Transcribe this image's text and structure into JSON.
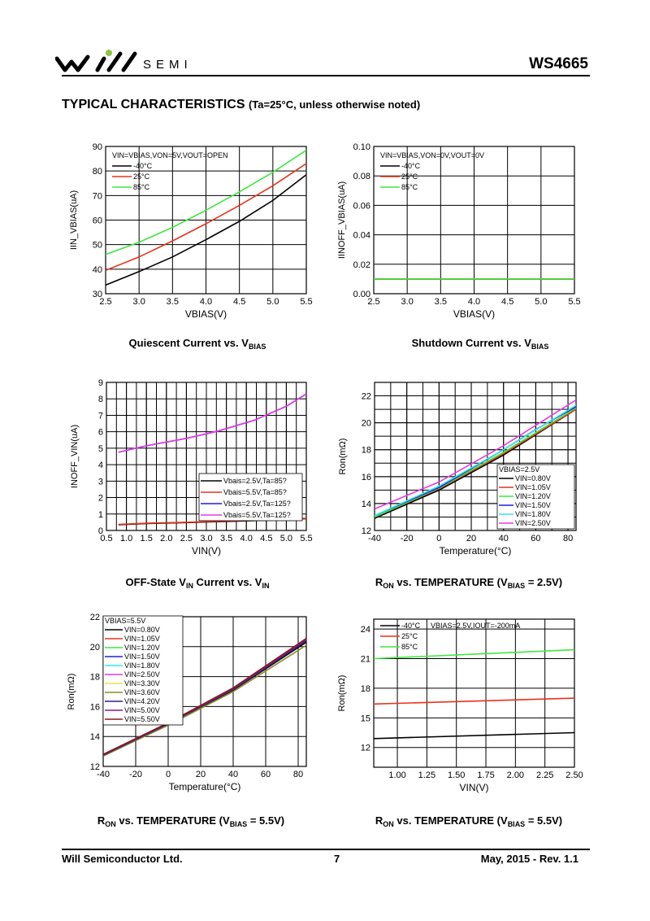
{
  "header": {
    "brand": "SEMI",
    "part_number": "WS4665",
    "section_title": "TYPICAL CHARACTERISTICS",
    "section_note": "(Ta=25°C, unless otherwise noted)"
  },
  "captions": {
    "c1_main": "Quiescent Current vs. V",
    "c1_sub": "BIAS",
    "c2_main": "Shutdown Current vs. V",
    "c2_sub": "BIAS",
    "c3_a": "OFF-State V",
    "c3_sub1": "IN",
    "c3_b": " Current vs. V",
    "c3_sub2": "IN",
    "c4_a": "R",
    "c4_sub1": "ON",
    "c4_b": " vs. TEMPERATURE (V",
    "c4_sub2": "BIAS",
    "c4_c": " = 2.5V)",
    "c5_a": "R",
    "c5_sub1": "ON",
    "c5_b": " vs. TEMPERATURE (V",
    "c5_sub2": "BIAS",
    "c5_c": " = 5.5V)",
    "c6_a": "R",
    "c6_sub1": "ON",
    "c6_b": " vs. TEMPERATURE (V",
    "c6_sub2": "BIAS",
    "c6_c": " = 5.5V)"
  },
  "footer": {
    "company": "Will Semiconductor Ltd.",
    "page": "7",
    "date_rev": "May, 2015 - Rev. 1.1"
  },
  "colors": {
    "black": "#000000",
    "red": "#e8331c",
    "green": "#3ee83e",
    "blue": "#1f1fe0",
    "cyan": "#3ae6e6",
    "magenta": "#e63ae6",
    "yellow": "#e6e63a",
    "olive": "#8a8a2a",
    "indigo": "#3a1a8c",
    "purple": "#8a1a8a",
    "maroon": "#8a1a1a"
  },
  "chart_data": [
    {
      "type": "line",
      "xlabel": "VBIAS(V)",
      "ylabel": "IIN_VBIAS(uA)",
      "xlim": [
        2.5,
        5.5
      ],
      "ylim": [
        30,
        90
      ],
      "xticks": [
        "2.5",
        "3.0",
        "3.5",
        "4.0",
        "4.5",
        "5.0",
        "5.5"
      ],
      "yticks": [
        "30",
        "40",
        "50",
        "60",
        "70",
        "80",
        "90"
      ],
      "annotation": "VIN=VBIAS,VON=5V,VOUT=OPEN",
      "legend_placement": "top-left",
      "series": [
        {
          "name": "-40°C",
          "color": "#000000",
          "x": [
            2.5,
            3.0,
            3.5,
            4.0,
            4.5,
            5.0,
            5.5
          ],
          "y": [
            33.5,
            39,
            45,
            52,
            59.5,
            68,
            78.5
          ]
        },
        {
          "name": "25°C",
          "color": "#e8331c",
          "x": [
            2.5,
            3.0,
            3.5,
            4.0,
            4.5,
            5.0,
            5.5
          ],
          "y": [
            39.5,
            45,
            51.5,
            58.5,
            66,
            74,
            83
          ]
        },
        {
          "name": "85°C",
          "color": "#3ee83e",
          "x": [
            2.5,
            3.0,
            3.5,
            4.0,
            4.5,
            5.0,
            5.5
          ],
          "y": [
            46,
            51,
            57,
            64,
            71.5,
            79.5,
            88.5
          ]
        }
      ]
    },
    {
      "type": "line",
      "xlabel": "VBIAS(V)",
      "ylabel": "IINOFF_VBIAS(uA)",
      "xlim": [
        2.5,
        5.5
      ],
      "ylim": [
        0,
        0.1
      ],
      "xticks": [
        "2.5",
        "3.0",
        "3.5",
        "4.0",
        "4.5",
        "5.0",
        "5.5"
      ],
      "yticks": [
        "0.00",
        "0.02",
        "0.04",
        "0.06",
        "0.08",
        "0.10"
      ],
      "annotation": "VIN=VBIAS,VON=0V,VOUT=0V",
      "legend_placement": "top-left",
      "series": [
        {
          "name": "-40°C",
          "color": "#000000",
          "x": [
            2.5,
            5.5
          ],
          "y": [
            0.01,
            0.01
          ]
        },
        {
          "name": "25°C",
          "color": "#e8331c",
          "x": [
            2.5,
            5.5
          ],
          "y": [
            0.01,
            0.01
          ]
        },
        {
          "name": "85°C",
          "color": "#3ee83e",
          "x": [
            2.5,
            5.5
          ],
          "y": [
            0.01,
            0.01
          ]
        }
      ]
    },
    {
      "type": "line",
      "xlabel": "VIN(V)",
      "ylabel": "INOFF_VIN(uA)",
      "xlim": [
        0.5,
        5.5
      ],
      "ylim": [
        0,
        9
      ],
      "xticks": [
        "0.5",
        "1.0",
        "1.5",
        "2.0",
        "2.5",
        "3.0",
        "3.5",
        "4.0",
        "4.5",
        "5.0",
        "5.5"
      ],
      "yticks": [
        "0",
        "1",
        "2",
        "3",
        "4",
        "5",
        "6",
        "7",
        "8",
        "9"
      ],
      "annotation": "",
      "legend_placement": "bottom-right",
      "series": [
        {
          "name": "Vbais=2.5V,Ta=85?",
          "color": "#000000",
          "x": [
            0.8,
            1.5,
            2.5,
            3.5,
            4.5,
            5.5
          ],
          "y": [
            0.35,
            0.42,
            0.48,
            0.55,
            0.62,
            0.72
          ]
        },
        {
          "name": "Vbais=5.5V,Ta=85?",
          "color": "#e8331c",
          "x": [
            0.8,
            1.5,
            2.5,
            3.5,
            4.5,
            5.5
          ],
          "y": [
            0.37,
            0.44,
            0.5,
            0.57,
            0.64,
            0.74
          ]
        },
        {
          "name": "Vbais=2.5V,Ta=125?",
          "color": "#1f1fe0",
          "x": [
            0.8,
            1.5,
            2.5,
            3.3,
            4.2,
            5.0,
            5.5
          ],
          "y": [
            4.75,
            5.15,
            5.6,
            6.05,
            6.7,
            7.55,
            8.3
          ]
        },
        {
          "name": "Vbais=5.5V,Ta=125?",
          "color": "#e63ae6",
          "x": [
            0.8,
            1.5,
            2.5,
            3.3,
            4.2,
            5.0,
            5.5
          ],
          "y": [
            4.75,
            5.15,
            5.6,
            6.05,
            6.7,
            7.55,
            8.3
          ]
        }
      ]
    },
    {
      "type": "line",
      "xlabel": "Temperature(°C)",
      "ylabel": "Ron(mΩ)",
      "xlim": [
        -40,
        85
      ],
      "ylim": [
        12,
        23
      ],
      "xticks": [
        "-40",
        "-20",
        "0",
        "20",
        "40",
        "60",
        "80"
      ],
      "yticks": [
        "12",
        "14",
        "16",
        "18",
        "20",
        "22"
      ],
      "annotation": "VBIAS=2.5V",
      "legend_placement": "bottom-right",
      "series": [
        {
          "name": "VIN=0.80V",
          "color": "#000000",
          "x": [
            -40,
            0,
            40,
            85
          ],
          "y": [
            12.9,
            15.0,
            17.6,
            21.0
          ]
        },
        {
          "name": "VIN=1.05V",
          "color": "#e8331c",
          "x": [
            -40,
            0,
            40,
            85
          ],
          "y": [
            13.0,
            15.1,
            17.7,
            21.0
          ]
        },
        {
          "name": "VIN=1.20V",
          "color": "#3ee83e",
          "x": [
            -40,
            0,
            40,
            85
          ],
          "y": [
            13.0,
            15.15,
            17.8,
            21.1
          ]
        },
        {
          "name": "VIN=1.50V",
          "color": "#1f1fe0",
          "x": [
            -40,
            0,
            40,
            60,
            85
          ],
          "y": [
            13.1,
            15.2,
            18.0,
            19.5,
            21.2
          ]
        },
        {
          "name": "VIN=1.80V",
          "color": "#3ae6e6",
          "x": [
            -40,
            0,
            40,
            85
          ],
          "y": [
            13.1,
            15.3,
            18.0,
            21.3
          ]
        },
        {
          "name": "VIN=2.50V",
          "color": "#e63ae6",
          "x": [
            -40,
            0,
            40,
            85
          ],
          "y": [
            13.6,
            15.6,
            18.3,
            21.7
          ]
        }
      ]
    },
    {
      "type": "line",
      "xlabel": "Temperature(°C)",
      "ylabel": "Ron(mΩ)",
      "xlim": [
        -40,
        85
      ],
      "ylim": [
        12,
        22
      ],
      "xticks": [
        "-40",
        "-20",
        "0",
        "20",
        "40",
        "60",
        "80"
      ],
      "yticks": [
        "12",
        "14",
        "16",
        "18",
        "20",
        "22"
      ],
      "annotation": "VBIAS=5.5V",
      "legend_placement": "top-left",
      "series": [
        {
          "name": "VIN=0.80V",
          "color": "#000000",
          "x": [
            -40,
            0,
            40,
            85
          ],
          "y": [
            12.7,
            14.8,
            17.1,
            20.3
          ]
        },
        {
          "name": "VIN=1.05V",
          "color": "#e8331c",
          "x": [
            -40,
            0,
            40,
            85
          ],
          "y": [
            12.75,
            14.85,
            17.15,
            20.4
          ]
        },
        {
          "name": "VIN=1.20V",
          "color": "#3ee83e",
          "x": [
            -40,
            0,
            40,
            85
          ],
          "y": [
            12.75,
            14.85,
            17.15,
            20.4
          ]
        },
        {
          "name": "VIN=1.50V",
          "color": "#1f1fe0",
          "x": [
            -40,
            0,
            40,
            85
          ],
          "y": [
            12.8,
            14.9,
            17.2,
            20.45
          ]
        },
        {
          "name": "VIN=1.80V",
          "color": "#3ae6e6",
          "x": [
            -40,
            0,
            40,
            85
          ],
          "y": [
            12.8,
            14.9,
            17.2,
            20.45
          ]
        },
        {
          "name": "VIN=2.50V",
          "color": "#e63ae6",
          "x": [
            -40,
            0,
            40,
            85
          ],
          "y": [
            12.8,
            14.9,
            17.2,
            20.5
          ]
        },
        {
          "name": "VIN=3.30V",
          "color": "#e6e63a",
          "x": [
            -40,
            0,
            40,
            85
          ],
          "y": [
            12.8,
            14.9,
            17.2,
            20.5
          ]
        },
        {
          "name": "VIN=3.60V",
          "color": "#8a8a2a",
          "x": [
            -40,
            0,
            40,
            85
          ],
          "y": [
            12.7,
            14.75,
            17.0,
            20.1
          ]
        },
        {
          "name": "VIN=4.20V",
          "color": "#3a1a8c",
          "x": [
            -40,
            0,
            40,
            85
          ],
          "y": [
            12.75,
            14.85,
            17.15,
            20.4
          ]
        },
        {
          "name": "VIN=5.00V",
          "color": "#8a1a8a",
          "x": [
            -40,
            0,
            40,
            85
          ],
          "y": [
            12.8,
            14.9,
            17.2,
            20.5
          ]
        },
        {
          "name": "VIN=5.50V",
          "color": "#8a1a1a",
          "x": [
            -40,
            0,
            40,
            85
          ],
          "y": [
            12.8,
            14.9,
            17.25,
            20.55
          ]
        }
      ]
    },
    {
      "type": "line",
      "xlabel": "VIN(V)",
      "ylabel": "Ron(mΩ)",
      "xlim": [
        0.8,
        2.5
      ],
      "ylim": [
        10,
        25
      ],
      "xticks": [
        "1.00",
        "1.25",
        "1.50",
        "1.75",
        "2.00",
        "2.25",
        "2.50"
      ],
      "yticks": [
        "12",
        "15",
        "18",
        "21",
        "24"
      ],
      "annotation": "VBIAS=2.5V,IOUT=-200mA",
      "legend_placement": "top-left",
      "series": [
        {
          "name": "-40°C",
          "color": "#000000",
          "x": [
            0.8,
            2.5
          ],
          "y": [
            12.9,
            13.5
          ]
        },
        {
          "name": "25°C",
          "color": "#e8331c",
          "x": [
            0.8,
            2.5
          ],
          "y": [
            16.4,
            17.0
          ]
        },
        {
          "name": "85°C",
          "color": "#3ee83e",
          "x": [
            0.8,
            2.5
          ],
          "y": [
            21.0,
            21.9
          ]
        }
      ]
    }
  ]
}
